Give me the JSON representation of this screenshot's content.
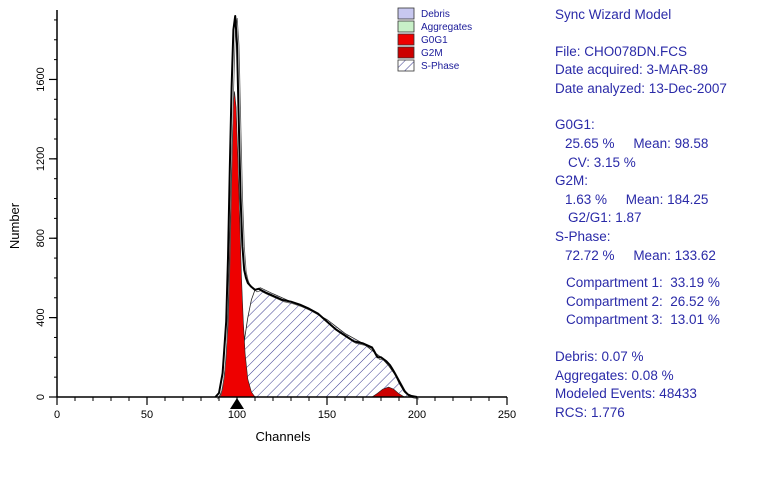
{
  "chart_data": {
    "type": "area",
    "xlabel": "Channels",
    "ylabel": "Number",
    "xlim": [
      0,
      250
    ],
    "ylim": [
      0,
      1950
    ],
    "x_ticks": [
      0,
      50,
      100,
      150,
      200,
      250
    ],
    "y_ticks": [
      0,
      400,
      800,
      1200,
      1600
    ],
    "marker_x": 100,
    "grid": false,
    "legend_position": "top-right",
    "legend": [
      {
        "label": "Debris",
        "color": "#c8c8f0"
      },
      {
        "label": "Aggregates",
        "color": "#c8f0c8"
      },
      {
        "label": "G0G1",
        "color": "#ee0000"
      },
      {
        "label": "G2M",
        "color": "#cc0000"
      },
      {
        "label": "S-Phase",
        "color": "#ffffff"
      }
    ],
    "series": [
      {
        "name": "G0G1",
        "color": "#ee0000",
        "x": [
          90,
          92,
          94,
          95,
          96,
          97,
          98,
          98.6,
          99.5,
          100.5,
          101.5,
          102.5,
          103.5,
          104.5,
          106,
          108,
          110
        ],
        "values": [
          0,
          40,
          200,
          420,
          800,
          1180,
          1480,
          1540,
          1460,
          1200,
          900,
          600,
          380,
          220,
          90,
          25,
          0
        ]
      },
      {
        "name": "G2M",
        "color": "#cc0000",
        "x": [
          175,
          178,
          181,
          184.25,
          187,
          190,
          193
        ],
        "values": [
          0,
          18,
          40,
          50,
          40,
          16,
          0
        ]
      },
      {
        "name": "S-Phase",
        "color": "#ffffff",
        "x": [
          98,
          100,
          103,
          106,
          108,
          110,
          113,
          120,
          130,
          140,
          150,
          160,
          170,
          180,
          184,
          188,
          190,
          193,
          196
        ],
        "values": [
          0,
          60,
          220,
          400,
          490,
          540,
          550,
          520,
          480,
          440,
          390,
          320,
          270,
          200,
          160,
          110,
          70,
          25,
          0
        ]
      },
      {
        "name": "Data",
        "color": "#000000",
        "x": [
          88,
          90,
          92,
          94,
          95,
          96,
          97,
          98,
          99,
          100,
          101,
          102,
          103,
          104,
          105,
          106,
          108,
          110,
          112,
          115,
          120,
          125,
          130,
          135,
          140,
          145,
          150,
          155,
          160,
          165,
          170,
          175,
          178,
          180,
          183,
          185,
          187,
          190,
          193,
          195,
          197,
          200
        ],
        "values": [
          0,
          20,
          120,
          380,
          700,
          1150,
          1560,
          1850,
          1920,
          1780,
          1380,
          1000,
          760,
          640,
          600,
          575,
          555,
          540,
          545,
          530,
          510,
          490,
          480,
          465,
          445,
          420,
          380,
          340,
          310,
          280,
          270,
          250,
          200,
          200,
          180,
          160,
          130,
          80,
          30,
          12,
          5,
          0
        ]
      }
    ]
  },
  "report": {
    "title": "Sync Wizard Model",
    "file": "File: CHO078DN.FCS",
    "date_acquired": "Date acquired: 3-MAR-89",
    "date_analyzed": "Date analyzed: 13-Dec-2007",
    "g0g1_label": "G0G1:",
    "g0g1_pct": "25.65 %",
    "g0g1_mean": "Mean: 98.58",
    "g0g1_cv": "CV: 3.15 %",
    "g2m_label": "G2M:",
    "g2m_pct": "1.63 %",
    "g2m_mean": "Mean: 184.25",
    "g2m_ratio": "G2/G1: 1.87",
    "sphase_label": "S-Phase:",
    "sphase_pct": "72.72 %",
    "sphase_mean": "Mean: 133.62",
    "compartment1": "Compartment 1:  33.19 %",
    "compartment2": "Compartment 2:  26.52 %",
    "compartment3": "Compartment 3:  13.01 %",
    "debris": "Debris: 0.07 %",
    "aggregates": "Aggregates: 0.08 %",
    "modeled_events": "Modeled Events: 48433",
    "rcs": "RCS: 1.776"
  }
}
